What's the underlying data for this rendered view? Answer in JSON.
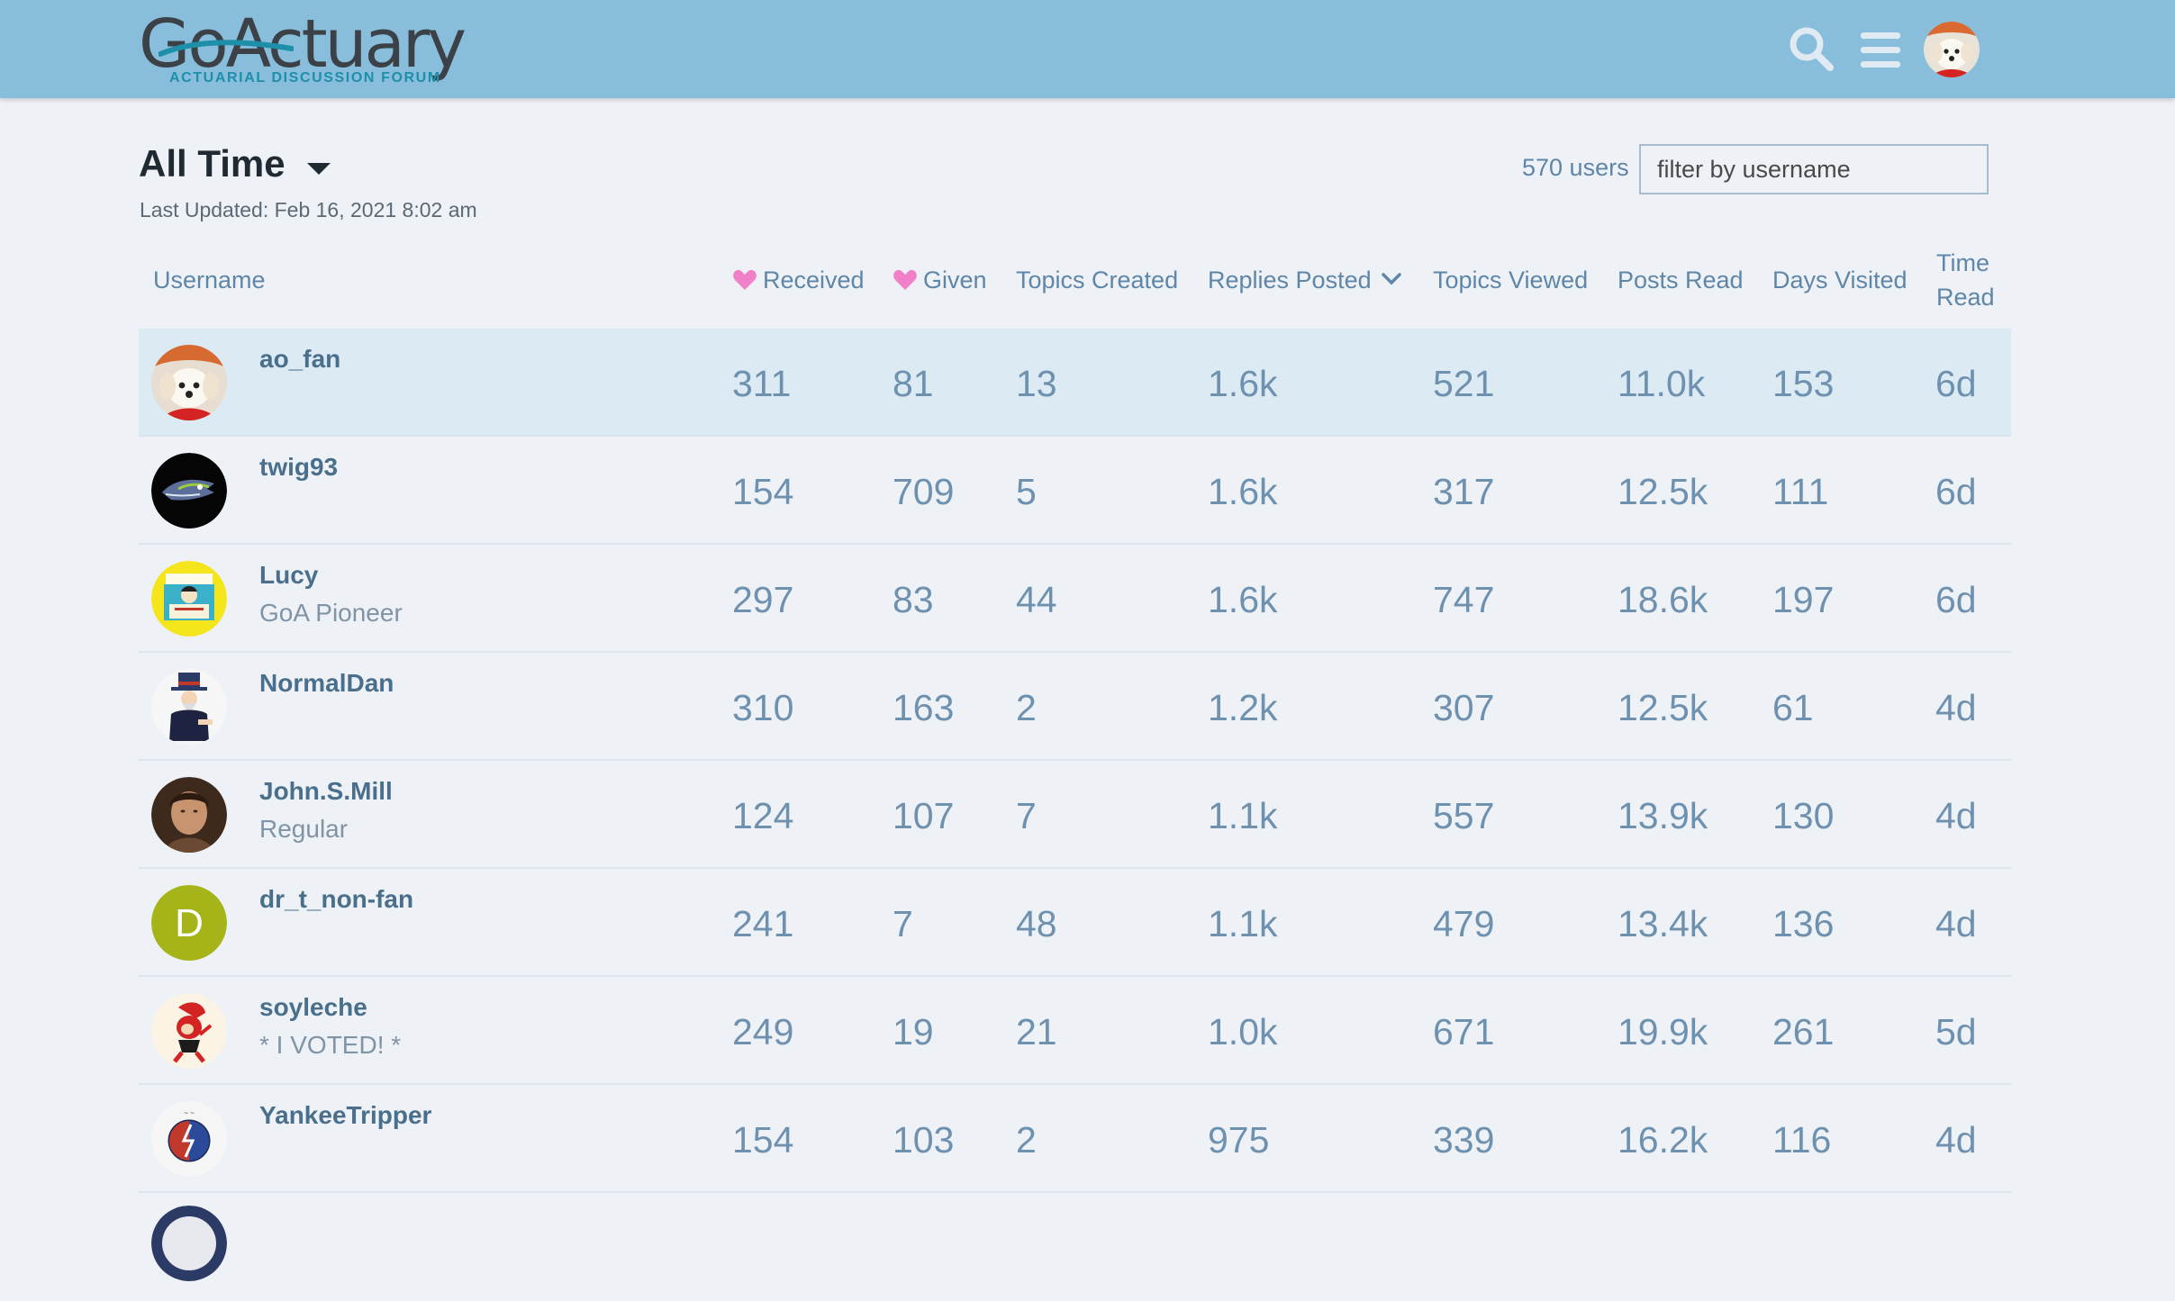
{
  "header": {
    "logo_text": "GoActuary",
    "logo_tagline": "ACTUARIAL DISCUSSION FORUM"
  },
  "controls": {
    "period_label": "All Time",
    "last_updated": "Last Updated: Feb 16, 2021 8:02 am",
    "user_count": "570 users",
    "filter_placeholder": "filter by username"
  },
  "columns": {
    "username": "Username",
    "received": "Received",
    "given": "Given",
    "topics_created": "Topics Created",
    "replies_posted": "Replies Posted",
    "topics_viewed": "Topics Viewed",
    "posts_read": "Posts Read",
    "days_visited": "Days Visited",
    "time_read_line1": "Time",
    "time_read_line2": "Read"
  },
  "colors": {
    "header_bg": "#89bddc",
    "highlight_row": "#dbeaf3",
    "heart": "#f080c8",
    "link": "#4a6f8c"
  },
  "rows": [
    {
      "username": "ao_fan",
      "title": "",
      "received": "311",
      "given": "81",
      "topics_created": "13",
      "replies_posted": "1.6k",
      "topics_viewed": "521",
      "posts_read": "11.0k",
      "days_visited": "153",
      "time_read": "6d",
      "avatar": "dog-avatar"
    },
    {
      "username": "twig93",
      "title": "",
      "received": "154",
      "given": "709",
      "topics_created": "5",
      "replies_posted": "1.6k",
      "topics_viewed": "317",
      "posts_read": "12.5k",
      "days_visited": "111",
      "time_read": "6d",
      "avatar": "seahawks-avatar"
    },
    {
      "username": "Lucy",
      "title": "GoA Pioneer",
      "received": "297",
      "given": "83",
      "topics_created": "44",
      "replies_posted": "1.6k",
      "topics_viewed": "747",
      "posts_read": "18.6k",
      "days_visited": "197",
      "time_read": "6d",
      "avatar": "lucy-booth-avatar"
    },
    {
      "username": "NormalDan",
      "title": "",
      "received": "310",
      "given": "163",
      "topics_created": "2",
      "replies_posted": "1.2k",
      "topics_viewed": "307",
      "posts_read": "12.5k",
      "days_visited": "61",
      "time_read": "4d",
      "avatar": "uncle-sam-avatar"
    },
    {
      "username": "John.S.Mill",
      "title": "Regular",
      "received": "124",
      "given": "107",
      "topics_created": "7",
      "replies_posted": "1.1k",
      "topics_viewed": "557",
      "posts_read": "13.9k",
      "days_visited": "130",
      "time_read": "4d",
      "avatar": "portrait-avatar"
    },
    {
      "username": "dr_t_non-fan",
      "title": "",
      "received": "241",
      "given": "7",
      "topics_created": "48",
      "replies_posted": "1.1k",
      "topics_viewed": "479",
      "posts_read": "13.4k",
      "days_visited": "136",
      "time_read": "4d",
      "avatar": "letter-avatar",
      "avatar_letter": "D"
    },
    {
      "username": "soyleche",
      "title": "* I VOTED! *",
      "received": "249",
      "given": "19",
      "topics_created": "21",
      "replies_posted": "1.0k",
      "topics_viewed": "671",
      "posts_read": "19.9k",
      "days_visited": "261",
      "time_read": "5d",
      "avatar": "cartoon-avatar"
    },
    {
      "username": "YankeeTripper",
      "title": "",
      "received": "154",
      "given": "103",
      "topics_created": "2",
      "replies_posted": "975",
      "topics_viewed": "339",
      "posts_read": "16.2k",
      "days_visited": "116",
      "time_read": "4d",
      "avatar": "stealie-avatar"
    }
  ]
}
